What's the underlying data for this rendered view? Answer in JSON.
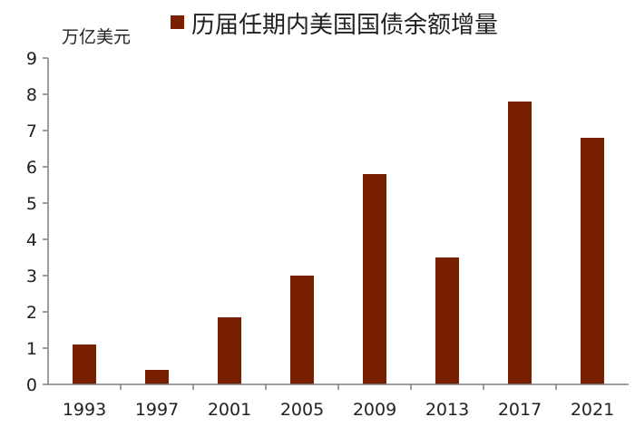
{
  "chart_data": {
    "type": "bar",
    "categories": [
      "1993",
      "1997",
      "2001",
      "2005",
      "2009",
      "2013",
      "2017",
      "2021"
    ],
    "series": [
      {
        "name": "历届任期内美国国债余额增量",
        "values": [
          1.1,
          0.4,
          1.85,
          3.0,
          5.8,
          3.5,
          7.8,
          6.8
        ],
        "color": "#782000"
      }
    ],
    "ylabel": "万亿美元",
    "ylim": [
      0,
      9
    ],
    "yticks": [
      0,
      1,
      2,
      3,
      4,
      5,
      6,
      7,
      8,
      9
    ],
    "grid": false,
    "legend": "top-center"
  }
}
